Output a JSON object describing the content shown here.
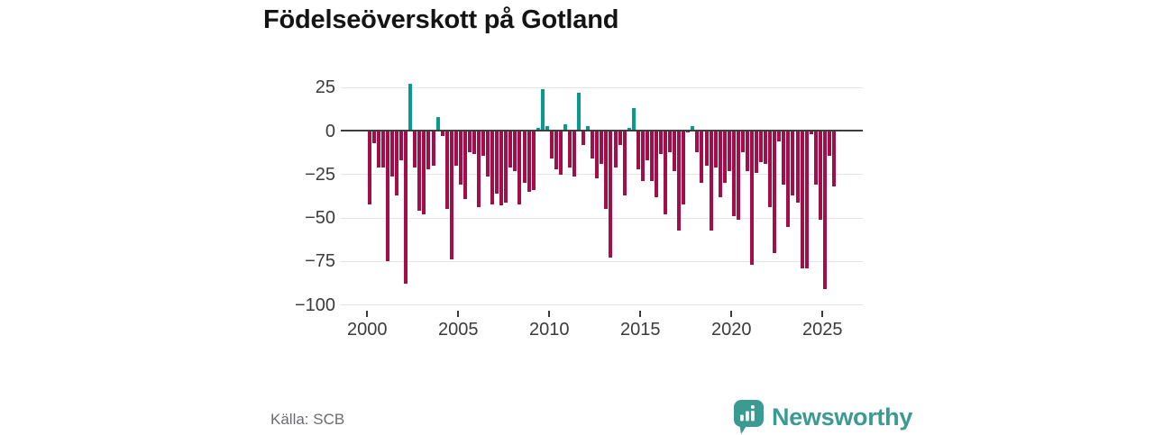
{
  "title": "Födelseöverskott på Gotland",
  "footer": {
    "source": "Källa: SCB",
    "brand": "Newsworthy"
  },
  "colors": {
    "positive_bar": "#089a90",
    "negative_bar": "#a30d48",
    "zero_line": "#3d3d3d",
    "gridline": "#e4e4e4",
    "logo_teal": "#3b9a92"
  },
  "chart_data": {
    "type": "bar",
    "title": "Födelseöverskott på Gotland",
    "xlabel": "",
    "ylabel": "",
    "frequency": "quarterly",
    "first_period": "2000 Q1",
    "last_period": "2025 Q3",
    "periods_per_year": 4,
    "ylim": [
      -100,
      30
    ],
    "grid": "horizontal",
    "y_ticks": [
      25,
      0,
      -25,
      -50,
      -75,
      -100
    ],
    "y_tick_labels": [
      "25",
      "0",
      "−25",
      "−50",
      "−75",
      "−100"
    ],
    "x_tick_years": [
      2000,
      2005,
      2010,
      2015,
      2020,
      2025
    ],
    "x_tick_labels": [
      "2000",
      "2005",
      "2010",
      "2015",
      "2020",
      "2025"
    ],
    "values": [
      -42,
      -7,
      -21,
      -21,
      -75,
      -26,
      -37,
      -17,
      -88,
      27,
      -21,
      -46,
      -48,
      -22,
      -20,
      8,
      -3,
      -45,
      -74,
      -20,
      -31,
      -39,
      -12,
      -13,
      -44,
      -14,
      -26,
      -42,
      -36,
      -43,
      -41,
      -21,
      -23,
      -42,
      -30,
      -35,
      -34,
      2,
      24,
      3,
      -16,
      -22,
      -25,
      4,
      -21,
      -26,
      22,
      -8,
      3,
      -16,
      -27,
      -19,
      -45,
      -73,
      -21,
      -8,
      -37,
      2,
      13,
      -22,
      -29,
      -17,
      -29,
      -38,
      -13,
      -48,
      -12,
      -23,
      -57,
      -42,
      -1,
      3,
      -12,
      -30,
      -20,
      -57,
      -21,
      -38,
      -30,
      -23,
      -49,
      -51,
      -12,
      -23,
      -77,
      -24,
      -18,
      -19,
      -44,
      -70,
      -6,
      -31,
      -55,
      -37,
      -41,
      -79,
      -79,
      -2,
      -31,
      -51,
      -91,
      -14,
      -32
    ]
  }
}
